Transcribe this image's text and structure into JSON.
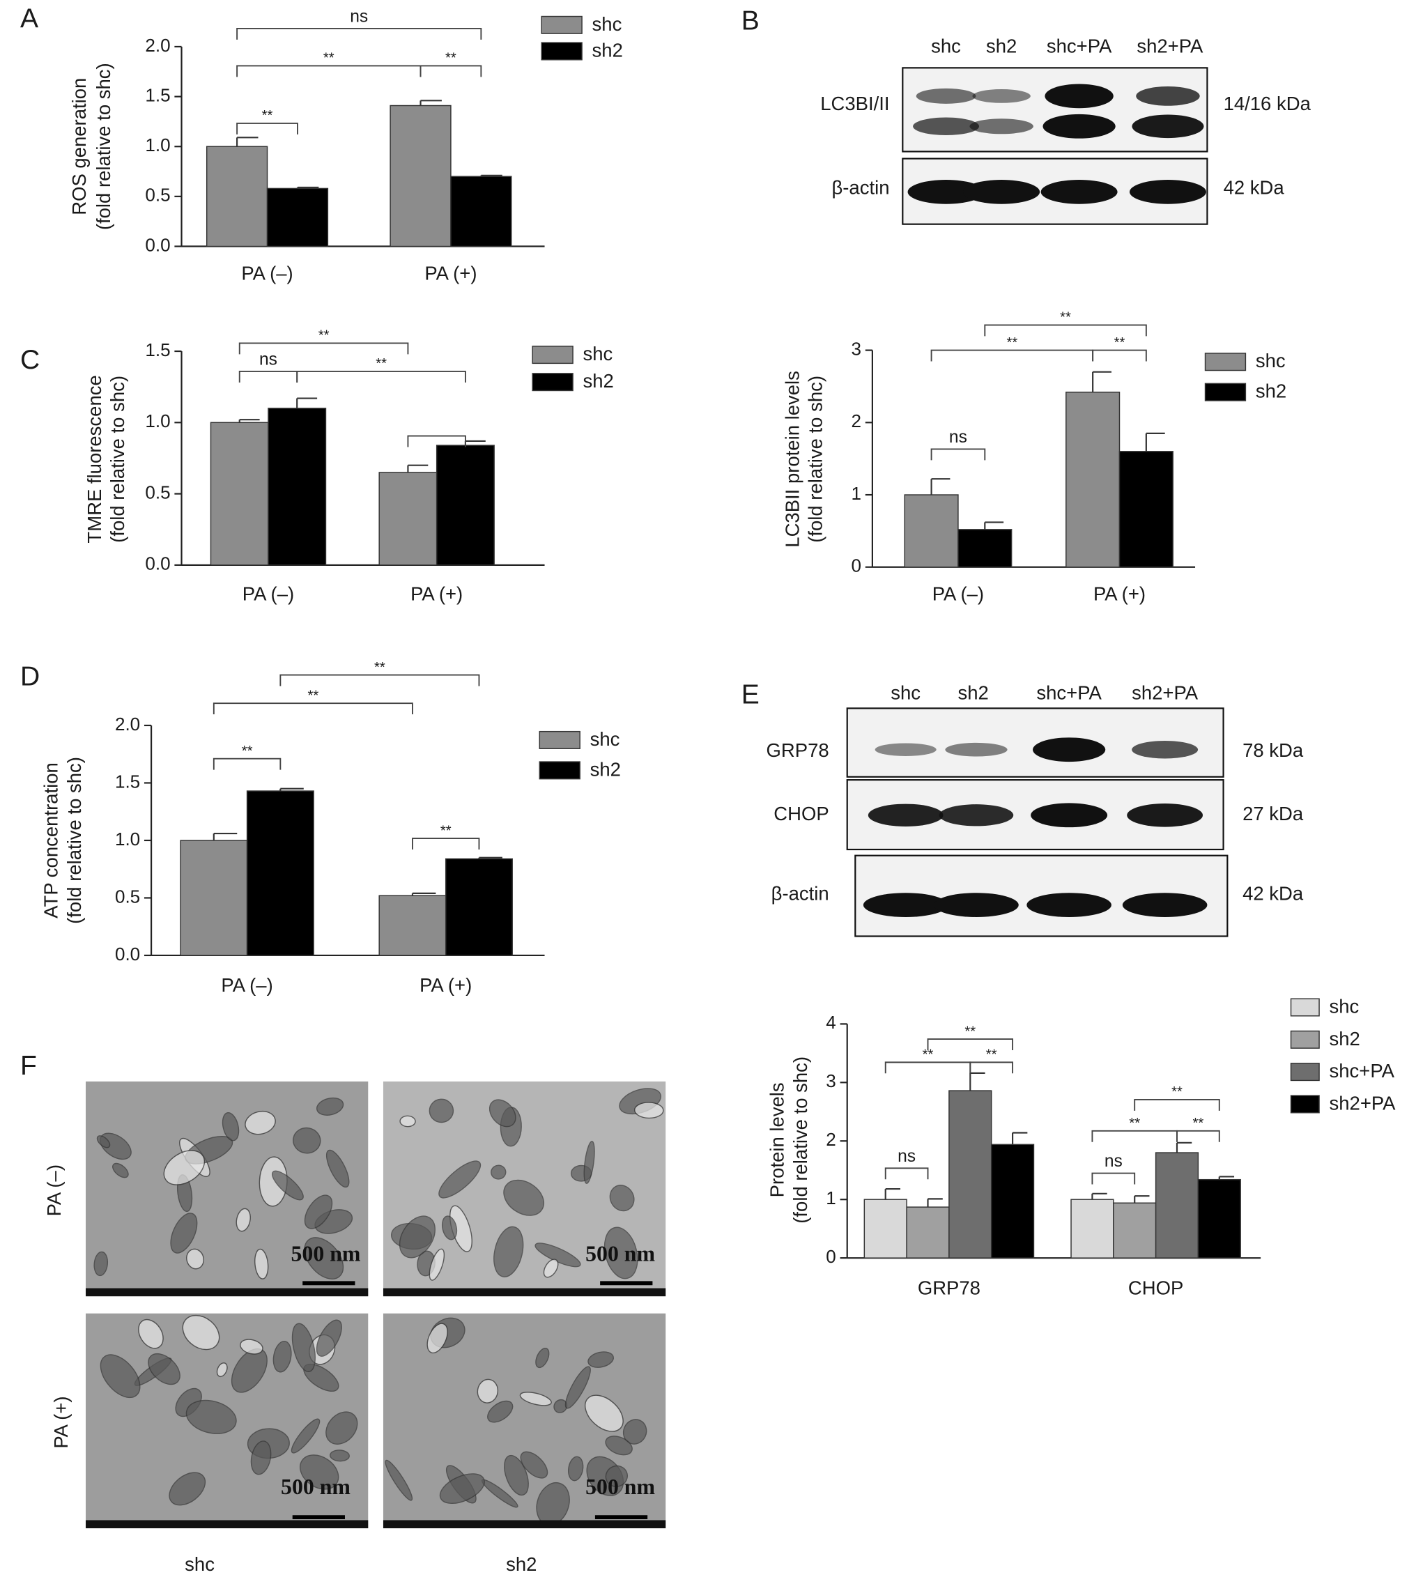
{
  "panel_labels": [
    "A",
    "B",
    "C",
    "D",
    "E",
    "F"
  ],
  "chart_data": [
    {
      "type": "bar",
      "ylabel": [
        "ROS generation",
        "(fold relative to shc)"
      ],
      "categories": [
        "PA (–)",
        "PA (+)"
      ],
      "series": [
        {
          "name": "shc",
          "color": "#8c8c8c",
          "values": [
            1.0,
            1.41
          ],
          "errors": [
            0.09,
            0.05
          ]
        },
        {
          "name": "sh2",
          "color": "#000000",
          "values": [
            0.58,
            0.7
          ],
          "errors": [
            0.01,
            0.01
          ]
        }
      ],
      "ylim": [
        0,
        2
      ],
      "yticks": [
        {
          "value": 0,
          "label": "0.0"
        },
        0.5,
        {
          "value": 1,
          "label": "1.0"
        },
        1.5,
        {
          "value": 2,
          "label": "2.0"
        }
      ],
      "annotations": [
        "ns",
        "**",
        "**",
        "**"
      ],
      "legend": "right"
    },
    {
      "type": "bar",
      "ylabel": [
        "TMRE fluorescence",
        "(fold relative to shc)"
      ],
      "categories": [
        "PA (–)",
        "PA (+)"
      ],
      "series": [
        {
          "name": "shc",
          "color": "#8c8c8c",
          "values": [
            1.0,
            0.65
          ],
          "errors": [
            0.02,
            0.05
          ]
        },
        {
          "name": "sh2",
          "color": "#000000",
          "values": [
            1.1,
            0.84
          ],
          "errors": [
            0.07,
            0.03
          ]
        }
      ],
      "ylim": [
        0,
        1.5
      ],
      "yticks": [
        {
          "value": 0,
          "label": "0.0"
        },
        0.5,
        {
          "value": 1,
          "label": "1.0"
        },
        1.5
      ],
      "annotations": [
        "**",
        "ns",
        "**"
      ],
      "legend": "right"
    },
    {
      "type": "bar",
      "ylabel": [
        "ATP concentration",
        "(fold relative to shc)"
      ],
      "categories": [
        "PA (–)",
        "PA (+)"
      ],
      "series": [
        {
          "name": "shc",
          "color": "#8c8c8c",
          "values": [
            1.0,
            0.52
          ],
          "errors": [
            0.06,
            0.02
          ]
        },
        {
          "name": "sh2",
          "color": "#000000",
          "values": [
            1.43,
            0.84
          ],
          "errors": [
            0.02,
            0.01
          ]
        }
      ],
      "ylim": [
        0,
        2
      ],
      "yticks": [
        {
          "value": 0,
          "label": "0.0"
        },
        0.5,
        {
          "value": 1,
          "label": "1.0"
        },
        1.5,
        {
          "value": 2,
          "label": "2.0"
        }
      ],
      "annotations": [
        "**",
        "**",
        "**",
        "**"
      ],
      "legend": "right"
    },
    {
      "type": "bar",
      "ylabel": [
        "LC3BII protein levels",
        "(fold relative to shc)"
      ],
      "categories": [
        "PA (–)",
        "PA (+)"
      ],
      "series": [
        {
          "name": "shc",
          "color": "#8c8c8c",
          "values": [
            1.0,
            2.42
          ],
          "errors": [
            0.22,
            0.28
          ]
        },
        {
          "name": "sh2",
          "color": "#000000",
          "values": [
            0.52,
            1.6
          ],
          "errors": [
            0.1,
            0.25
          ]
        }
      ],
      "ylim": [
        0,
        3
      ],
      "yticks": [
        0,
        1,
        2,
        3
      ],
      "annotations": [
        "**",
        "**",
        "**",
        "ns"
      ],
      "legend": "right"
    },
    {
      "type": "bar",
      "ylabel": [
        "Protein levels",
        "(fold relative to shc)"
      ],
      "categories": [
        "GRP78",
        "CHOP"
      ],
      "series": [
        {
          "name": "shc",
          "color": "#d9d9d9",
          "values": [
            1.0,
            1.0
          ],
          "errors": [
            0.18,
            0.1
          ]
        },
        {
          "name": "sh2",
          "color": "#a0a0a0",
          "values": [
            0.87,
            0.94
          ],
          "errors": [
            0.14,
            0.12
          ]
        },
        {
          "name": "shc+PA",
          "color": "#6e6e6e",
          "values": [
            2.86,
            1.8
          ],
          "errors": [
            0.3,
            0.17
          ]
        },
        {
          "name": "sh2+PA",
          "color": "#000000",
          "values": [
            1.94,
            1.34
          ],
          "errors": [
            0.2,
            0.05
          ]
        }
      ],
      "ylim": [
        0,
        4
      ],
      "yticks": [
        0,
        1,
        2,
        3,
        4
      ],
      "annotations": [
        "**",
        "**",
        "**",
        "ns",
        "**",
        "**",
        "**",
        "ns"
      ],
      "legend": "right"
    }
  ],
  "blots": [
    {
      "lanes": [
        "shc",
        "sh2",
        "shc+PA",
        "sh2+PA"
      ],
      "rows": [
        {
          "label": "LC3BI/II",
          "size": "14/16 kDa"
        },
        {
          "label": "β-actin",
          "size": "42 kDa"
        }
      ]
    },
    {
      "lanes": [
        "shc",
        "sh2",
        "shc+PA",
        "sh2+PA"
      ],
      "rows": [
        {
          "label": "GRP78",
          "size": "78 kDa"
        },
        {
          "label": "CHOP",
          "size": "27 kDa"
        },
        {
          "label": "β-actin",
          "size": "42 kDa"
        }
      ]
    }
  ],
  "micrographs": {
    "rows": [
      "PA (–)",
      "PA (+)"
    ],
    "columns": [
      "shc",
      "sh2"
    ],
    "scale_bars": [
      "500 nm",
      "500 nm",
      "500 nm",
      "500 nm"
    ]
  }
}
